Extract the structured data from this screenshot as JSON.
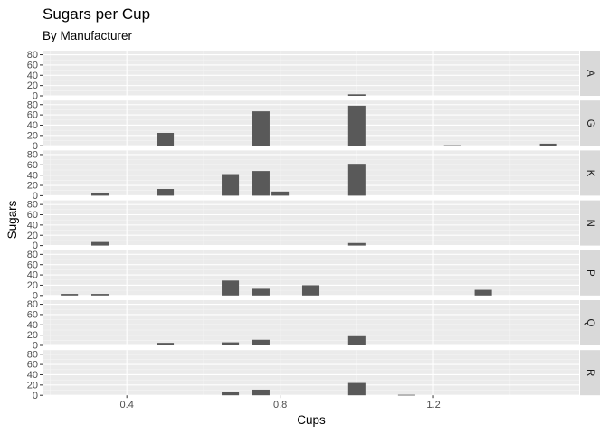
{
  "chart_data": {
    "type": "bar",
    "title": "Sugars per Cup",
    "subtitle": "By Manufacturer",
    "xlabel": "Cups",
    "ylabel": "Sugars",
    "x_ticks": [
      0.4,
      0.8,
      1.2
    ],
    "x_tick_labels": [
      "0.4",
      "0.8",
      "1.2"
    ],
    "y_ticks": [
      0,
      20,
      40,
      60,
      80
    ],
    "y_tick_labels": [
      "0",
      "20",
      "40",
      "60",
      "80"
    ],
    "xlim": [
      0.18,
      1.58
    ],
    "ylim": [
      0,
      88
    ],
    "bar_width": 0.045,
    "grid": true,
    "facet_by": "manufacturer",
    "panels": [
      {
        "label": "A",
        "bars": [
          {
            "x": 1.0,
            "y": 3
          }
        ]
      },
      {
        "label": "G",
        "bars": [
          {
            "x": 0.5,
            "y": 25
          },
          {
            "x": 0.75,
            "y": 67
          },
          {
            "x": 1.0,
            "y": 78
          },
          {
            "x": 1.25,
            "y": 1
          },
          {
            "x": 1.5,
            "y": 4
          }
        ]
      },
      {
        "label": "K",
        "bars": [
          {
            "x": 0.33,
            "y": 6
          },
          {
            "x": 0.5,
            "y": 13
          },
          {
            "x": 0.67,
            "y": 42
          },
          {
            "x": 0.75,
            "y": 48
          },
          {
            "x": 0.8,
            "y": 8
          },
          {
            "x": 1.0,
            "y": 62
          }
        ]
      },
      {
        "label": "N",
        "bars": [
          {
            "x": 0.33,
            "y": 7
          },
          {
            "x": 1.0,
            "y": 5
          }
        ]
      },
      {
        "label": "P",
        "bars": [
          {
            "x": 0.25,
            "y": 3
          },
          {
            "x": 0.33,
            "y": 3
          },
          {
            "x": 0.67,
            "y": 29
          },
          {
            "x": 0.75,
            "y": 13
          },
          {
            "x": 0.88,
            "y": 20
          },
          {
            "x": 1.33,
            "y": 11
          }
        ]
      },
      {
        "label": "Q",
        "bars": [
          {
            "x": 0.5,
            "y": 5
          },
          {
            "x": 0.67,
            "y": 6
          },
          {
            "x": 0.75,
            "y": 11
          },
          {
            "x": 1.0,
            "y": 18
          }
        ]
      },
      {
        "label": "R",
        "bars": [
          {
            "x": 0.67,
            "y": 7
          },
          {
            "x": 0.75,
            "y": 11
          },
          {
            "x": 1.0,
            "y": 24
          },
          {
            "x": 1.13,
            "y": 1
          }
        ]
      }
    ]
  },
  "colors": {
    "bar": "#595959",
    "panel_bg": "#ebebeb",
    "strip_bg": "#d9d9d9",
    "grid_major": "#ffffff",
    "grid_minor": "#f5f5f5",
    "tick": "#333333",
    "tick_text": "#4d4d4d"
  }
}
